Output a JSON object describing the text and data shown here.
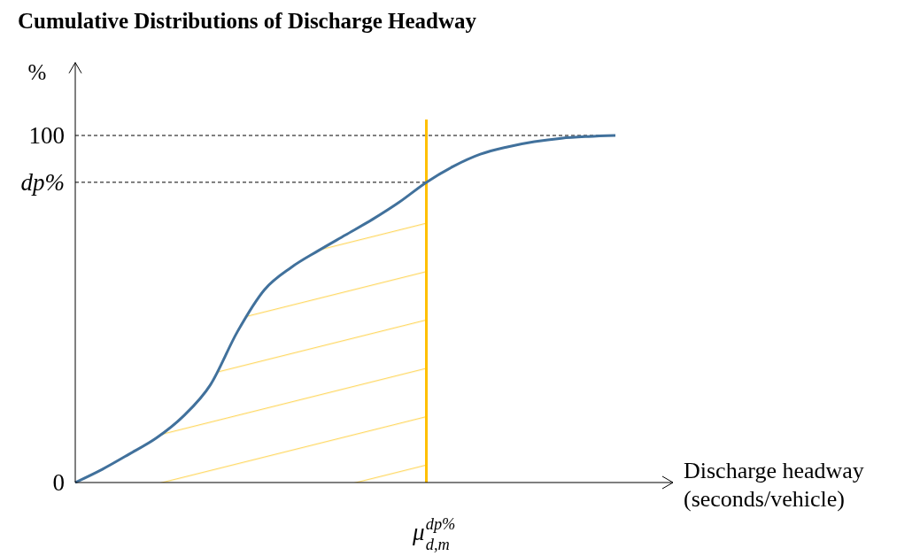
{
  "chart_data": {
    "type": "line",
    "title": "Cumulative Distributions of Discharge Headway",
    "xlabel": "Discharge headway\n(seconds/vehicle)",
    "ylabel": "%",
    "categories": [
      null,
      null,
      null,
      null,
      null,
      null,
      null,
      null,
      null,
      null,
      null,
      null,
      null,
      "μ$^{dp%}$$_{d,m}$",
      null,
      null,
      null,
      null,
      null,
      null,
      null
    ],
    "series": [
      {
        "color": "#41719c",
        "values": [
          0,
          3.8,
          8.2,
          12.8,
          19.1,
          28.1,
          43.4,
          55.5,
          62.0,
          66.8,
          71.3,
          75.8,
          80.8,
          86.5,
          91.1,
          94.6,
          96.7,
          98.2,
          99.2,
          99.7,
          100
        ]
      }
    ],
    "ylim": [
      0,
      121
    ],
    "yticks": [
      0,
      {
        "value": 86.5,
        "label": "dp%"
      },
      100
    ],
    "ref_lines": [
      {
        "axis": "y",
        "value": 100,
        "color": "#000000",
        "line_style": "dashed"
      },
      {
        "axis": "y",
        "value": 86.5,
        "color": "#000000",
        "line_style": "dashed"
      },
      {
        "axis": "x",
        "value": "μ$^{dp%}$$_{d,m}$",
        "color": "#ffc000",
        "line_style": "solid"
      }
    ],
    "line_style": "solid"
  }
}
